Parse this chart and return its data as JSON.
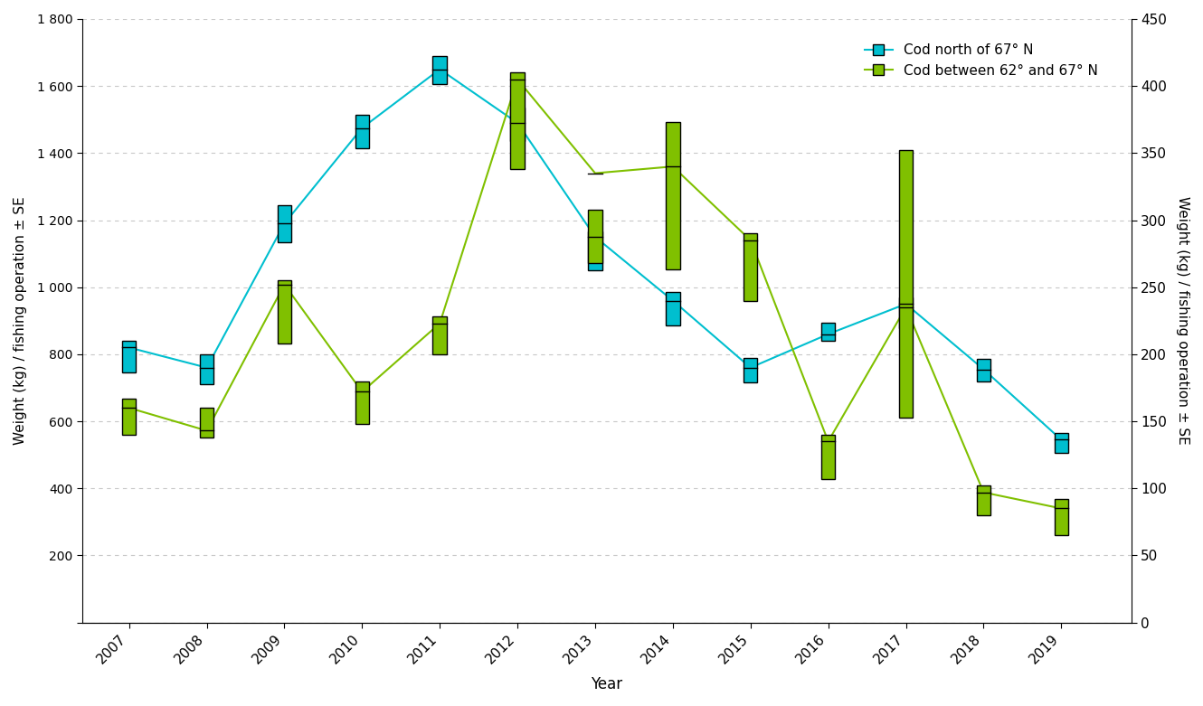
{
  "years": [
    2007,
    2008,
    2009,
    2010,
    2011,
    2012,
    2013,
    2014,
    2015,
    2016,
    2017,
    2018,
    2019
  ],
  "cyan_mean": [
    820,
    760,
    1190,
    1475,
    1650,
    1490,
    1150,
    960,
    760,
    860,
    950,
    755,
    545
  ],
  "cyan_upper": [
    840,
    800,
    1245,
    1515,
    1690,
    1535,
    1165,
    985,
    790,
    895,
    970,
    785,
    565
  ],
  "cyan_lower": [
    745,
    710,
    1135,
    1415,
    1605,
    1435,
    1050,
    885,
    715,
    840,
    878,
    720,
    505
  ],
  "green_mean_r": [
    160,
    143,
    252,
    172,
    223,
    405,
    335,
    340,
    285,
    135,
    235,
    97,
    85
  ],
  "green_upper_r": [
    167,
    160,
    255,
    180,
    228,
    410,
    308,
    373,
    290,
    140,
    352,
    102,
    92
  ],
  "green_lower_r": [
    140,
    138,
    208,
    148,
    200,
    338,
    268,
    263,
    240,
    107,
    153,
    80,
    65
  ],
  "left_ylabel": "Weight (kg) / fishing operation ± SE",
  "right_ylabel": "Weight (kg) / fishing operation ± SE",
  "xlabel": "Year",
  "cyan_label": "Cod north of 67° N",
  "green_label": "Cod between 62° and 67° N",
  "cyan_color": "#00BFCF",
  "green_color": "#80C000",
  "left_ylim": [
    0,
    1800
  ],
  "right_ylim": [
    0,
    450
  ],
  "left_yticks": [
    0,
    200,
    400,
    600,
    800,
    1000,
    1200,
    1400,
    1600,
    1800
  ],
  "right_yticks": [
    0,
    50,
    100,
    150,
    200,
    250,
    300,
    350,
    400,
    450
  ],
  "grid_color": "#C8C8C8",
  "background_color": "#FFFFFF",
  "box_width": 0.18
}
